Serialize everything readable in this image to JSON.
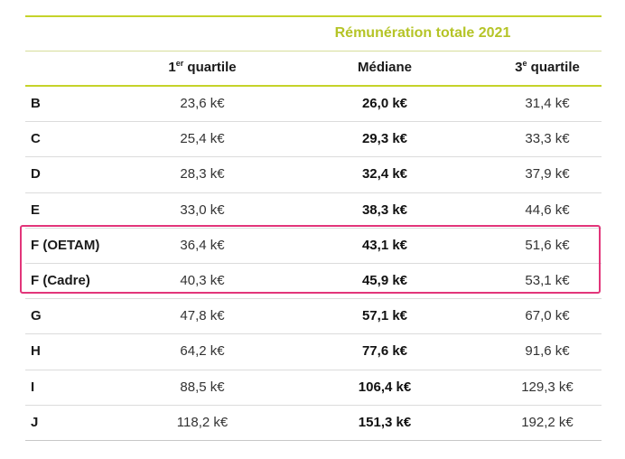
{
  "table": {
    "super_header": "Rémunération totale 2021",
    "columns": {
      "q1_main": "1",
      "q1_sup": "er",
      "q1_rest": " quartile",
      "median": "Médiane",
      "q3_main": "3",
      "q3_sup": "e",
      "q3_rest": " quartile"
    },
    "rows": [
      {
        "label": "B",
        "q1": "23,6 k€",
        "median": "26,0 k€",
        "q3": "31,4 k€"
      },
      {
        "label": "C",
        "q1": "25,4 k€",
        "median": "29,3 k€",
        "q3": "33,3 k€"
      },
      {
        "label": "D",
        "q1": "28,3 k€",
        "median": "32,4 k€",
        "q3": "37,9 k€"
      },
      {
        "label": "E",
        "q1": "33,0 k€",
        "median": "38,3 k€",
        "q3": "44,6 k€"
      },
      {
        "label": "F (OETAM)",
        "q1": "36,4 k€",
        "median": "43,1 k€",
        "q3": "51,6 k€"
      },
      {
        "label": "F (Cadre)",
        "q1": "40,3 k€",
        "median": "45,9 k€",
        "q3": "53,1 k€"
      },
      {
        "label": "G",
        "q1": "47,8 k€",
        "median": "57,1 k€",
        "q3": "67,0 k€"
      },
      {
        "label": "H",
        "q1": "64,2 k€",
        "median": "77,6 k€",
        "q3": "91,6 k€"
      },
      {
        "label": "I",
        "q1": "88,5 k€",
        "median": "106,4 k€",
        "q3": "129,3 k€"
      },
      {
        "label": "J",
        "q1": "118,2 k€",
        "median": "151,3 k€",
        "q3": "192,2 k€"
      }
    ]
  },
  "colors": {
    "accent": "#c5d32a",
    "title": "#b5c427",
    "highlight": "#e2357a"
  }
}
